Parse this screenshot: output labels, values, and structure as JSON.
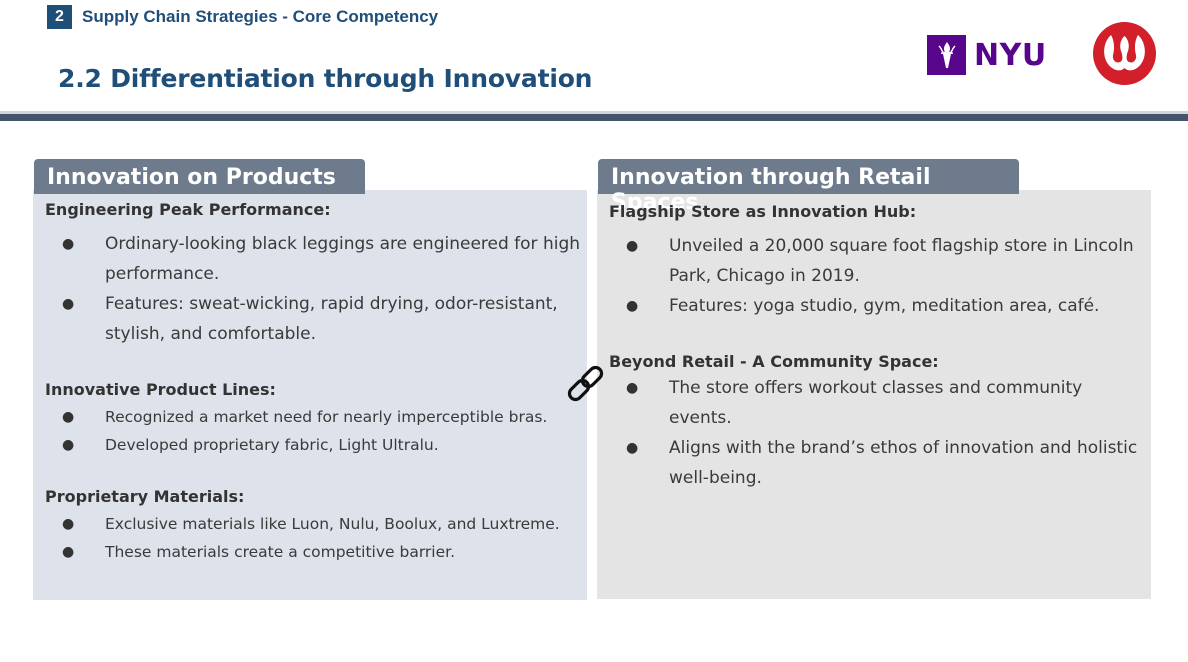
{
  "header": {
    "section_number": "2",
    "section_title": "Supply Chain Strategies - Core Competency",
    "slide_title": "2.2 Differentiation through Innovation",
    "nyu_logo_text": "NYU"
  },
  "left_panel": {
    "tab_title": "Innovation on Products",
    "groups": [
      {
        "heading": "Engineering Peak Performance:",
        "bullets": [
          "Ordinary-looking black leggings are engineered for high performance.",
          "Features: sweat-wicking, rapid drying, odor-resistant, stylish, and comfortable."
        ]
      },
      {
        "heading": "Innovative Product Lines:",
        "bullets": [
          "Recognized a market need for nearly imperceptible bras.",
          "Developed proprietary fabric, Light Ultralu."
        ]
      },
      {
        "heading": "Proprietary Materials:",
        "bullets": [
          "Exclusive materials like Luon, Nulu, Boolux, and Luxtreme.",
          "These materials create a competitive barrier."
        ]
      }
    ]
  },
  "right_panel": {
    "tab_title": "Innovation through Retail Spaces",
    "groups": [
      {
        "heading": "Flagship Store as Innovation Hub:",
        "bullets": [
          "Unveiled a 20,000 square foot flagship store in Lincoln Park, Chicago in 2019.",
          "Features: yoga studio, gym, meditation area, café."
        ]
      },
      {
        "heading": "Beyond Retail - A Community Space:",
        "bullets": [
          "The store offers workout classes and community events.",
          "Aligns with the brand’s ethos of innovation and holistic well-being."
        ]
      }
    ]
  },
  "icons": {
    "link": "chain-link-icon",
    "nyu": "nyu-torch-logo",
    "lululemon": "lululemon-logo"
  },
  "colors": {
    "accent": "#1f4e79",
    "tab": "#6d7b8d",
    "nyu_purple": "#57068c",
    "lulu_red": "#d31f2a"
  }
}
